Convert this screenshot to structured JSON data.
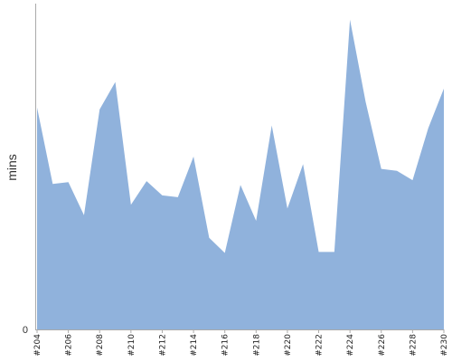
{
  "chart_data": {
    "type": "area",
    "title": "",
    "xlabel": "",
    "ylabel": "mins",
    "y_ticks": [
      {
        "value": 0,
        "label": "0"
      }
    ],
    "ylim": [
      0,
      345
    ],
    "x": [
      "#204",
      "#205",
      "#206",
      "#207",
      "#208",
      "#209",
      "#210",
      "#211",
      "#212",
      "#213",
      "#214",
      "#215",
      "#216",
      "#217",
      "#218",
      "#219",
      "#220",
      "#221",
      "#222",
      "#223",
      "#224",
      "#225",
      "#226",
      "#227",
      "#228",
      "#229",
      "#230"
    ],
    "x_tick_labels": [
      "#204",
      "#206",
      "#208",
      "#210",
      "#212",
      "#214",
      "#216",
      "#218",
      "#220",
      "#222",
      "#224",
      "#226",
      "#228",
      "#230"
    ],
    "series": [
      {
        "values": [
          235,
          154,
          156,
          121,
          233,
          262,
          132,
          157,
          142,
          140,
          183,
          97,
          81,
          153,
          115,
          216,
          128,
          175,
          82,
          82,
          328,
          241,
          170,
          168,
          158,
          213,
          255
        ],
        "color": "#90b2dc"
      }
    ],
    "grid": false,
    "legend": "none"
  }
}
